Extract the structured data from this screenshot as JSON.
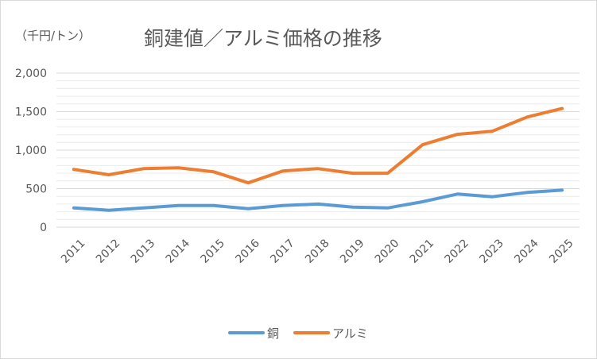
{
  "unit_label": "（千円/トン）",
  "chart_data": {
    "type": "line",
    "title": "銅建値／アルミ価格の推移",
    "xlabel": "",
    "ylabel": "（千円/トン）",
    "ylim": [
      0,
      2000
    ],
    "yticks": [
      0,
      500,
      1000,
      1500,
      2000
    ],
    "ytick_labels": [
      "0",
      "500",
      "1,000",
      "1,500",
      "2,000"
    ],
    "grid": true,
    "legend": "bottom",
    "categories": [
      "2011",
      "2012",
      "2013",
      "2014",
      "2015",
      "2016",
      "2017",
      "2018",
      "2019",
      "2020",
      "2021",
      "2022",
      "2023",
      "2024",
      "2025"
    ],
    "series": [
      {
        "name": "銅",
        "color": "#5b9bd5",
        "values": [
          250,
          220,
          250,
          280,
          280,
          240,
          280,
          300,
          260,
          250,
          330,
          430,
          395,
          450,
          480
        ]
      },
      {
        "name": "アルミ",
        "color": "#ed7d31",
        "values": [
          750,
          680,
          760,
          770,
          720,
          575,
          730,
          760,
          700,
          700,
          1070,
          1205,
          1245,
          1430,
          1540
        ]
      }
    ]
  }
}
